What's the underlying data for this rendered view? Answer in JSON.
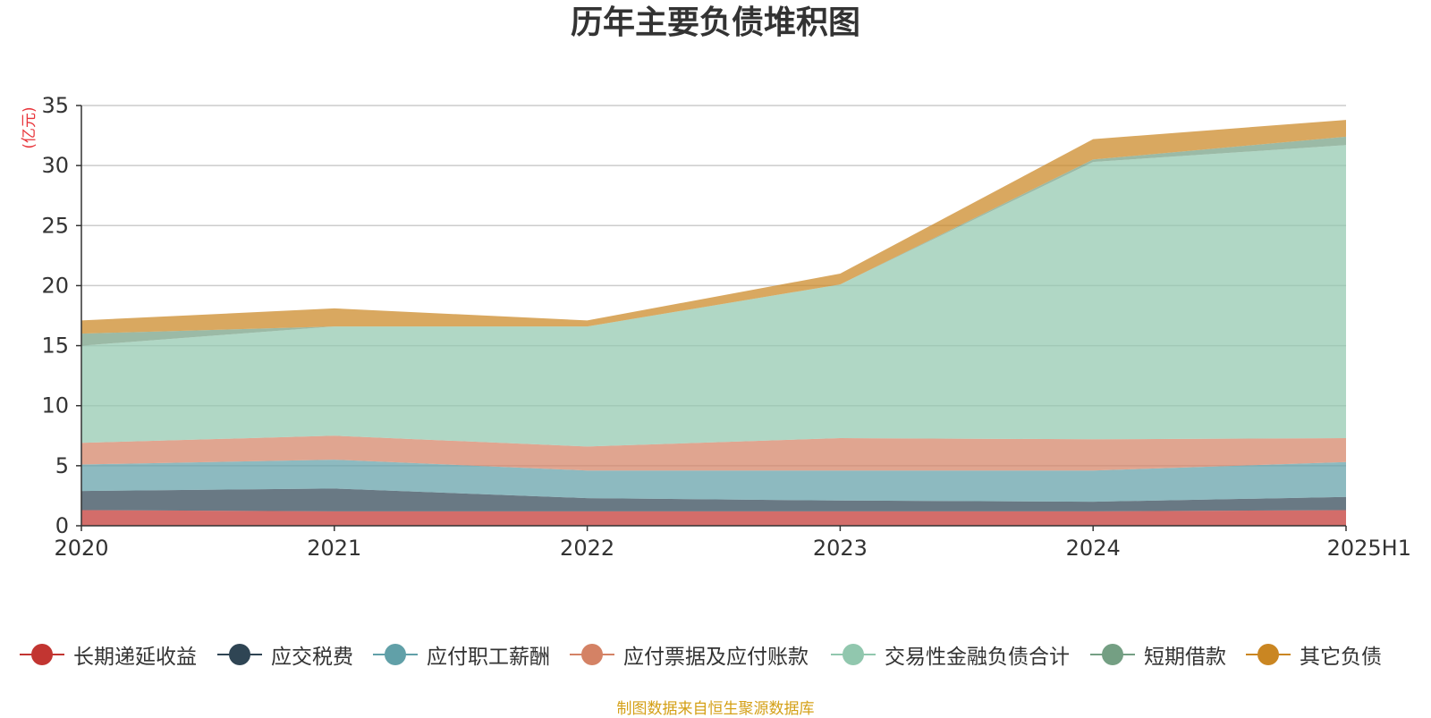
{
  "chart_data": {
    "type": "area",
    "stacked": true,
    "title": "历年主要负债堆积图",
    "ylabel": "(亿元)",
    "xlabel": "",
    "categories": [
      "2020",
      "2021",
      "2022",
      "2023",
      "2024",
      "2025H1"
    ],
    "ylim": [
      0,
      35
    ],
    "yticks": [
      0,
      5,
      10,
      15,
      20,
      25,
      30,
      35
    ],
    "grid": true,
    "legend_position": "bottom",
    "series": [
      {
        "name": "长期递延收益",
        "color": "#c23531",
        "values": [
          1.3,
          1.2,
          1.2,
          1.2,
          1.2,
          1.3
        ]
      },
      {
        "name": "应交税费",
        "color": "#2f4554",
        "values": [
          1.6,
          1.9,
          1.1,
          0.9,
          0.8,
          1.1
        ]
      },
      {
        "name": "应付职工薪酬",
        "color": "#61a0a8",
        "values": [
          2.2,
          2.4,
          2.3,
          2.5,
          2.6,
          2.9
        ]
      },
      {
        "name": "应付票据及应付账款",
        "color": "#d48265",
        "values": [
          1.8,
          2.0,
          2.0,
          2.7,
          2.6,
          2.0
        ]
      },
      {
        "name": "交易性金融负债合计",
        "color": "#91c7ae",
        "values": [
          8.1,
          9.1,
          10.0,
          12.8,
          23.1,
          24.4
        ]
      },
      {
        "name": "短期借款",
        "color": "#749f83",
        "values": [
          1.0,
          0.0,
          0.0,
          0.0,
          0.2,
          0.7
        ]
      },
      {
        "name": "其它负债",
        "color": "#ca8622",
        "values": [
          1.1,
          1.5,
          0.5,
          0.9,
          1.7,
          1.4
        ]
      }
    ]
  },
  "source_note": "制图数据来自恒生聚源数据库"
}
